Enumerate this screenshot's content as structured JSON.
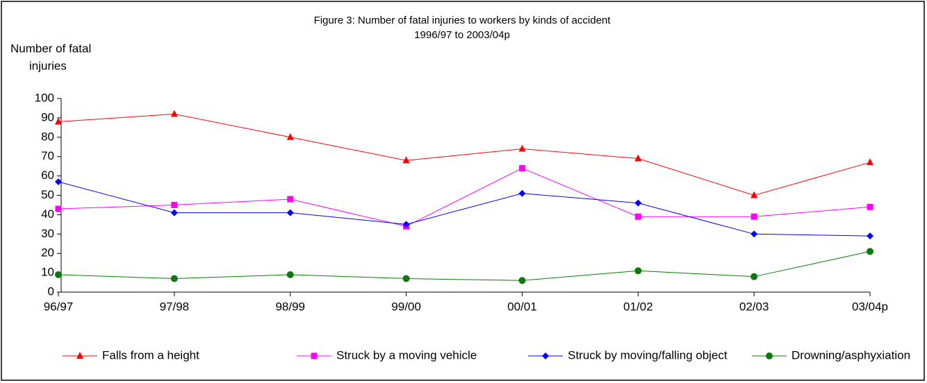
{
  "chart_data": {
    "type": "line",
    "title": "Figure 3:  Number of fatal injuries to workers by kinds of accident",
    "subtitle": "1996/97 to 2003/04p",
    "ylabel": [
      "Number of fatal",
      "injuries"
    ],
    "categories": [
      "96/97",
      "97/98",
      "98/99",
      "99/00",
      "00/01",
      "01/02",
      "02/03",
      "03/04p"
    ],
    "series": [
      {
        "name": "Falls from a height",
        "color": "#ff0000",
        "marker": "triangle",
        "values": [
          88,
          92,
          80,
          68,
          74,
          69,
          50,
          67
        ]
      },
      {
        "name": "Struck by a moving vehicle",
        "color": "#ff00ff",
        "marker": "square",
        "values": [
          43,
          45,
          48,
          34,
          64,
          39,
          39,
          44
        ]
      },
      {
        "name": "Struck by moving/falling object",
        "color": "#0000ff",
        "marker": "diamond",
        "values": [
          57,
          41,
          41,
          35,
          51,
          46,
          30,
          29
        ]
      },
      {
        "name": "Drowning/asphyxiation",
        "color": "#008000",
        "marker": "circle",
        "values": [
          9,
          7,
          9,
          7,
          6,
          11,
          8,
          21
        ]
      }
    ],
    "ylim": [
      0,
      100
    ],
    "yticks": [
      0,
      10,
      20,
      30,
      40,
      50,
      60,
      70,
      80,
      90,
      100
    ],
    "grid": false,
    "legend": "bottom"
  }
}
